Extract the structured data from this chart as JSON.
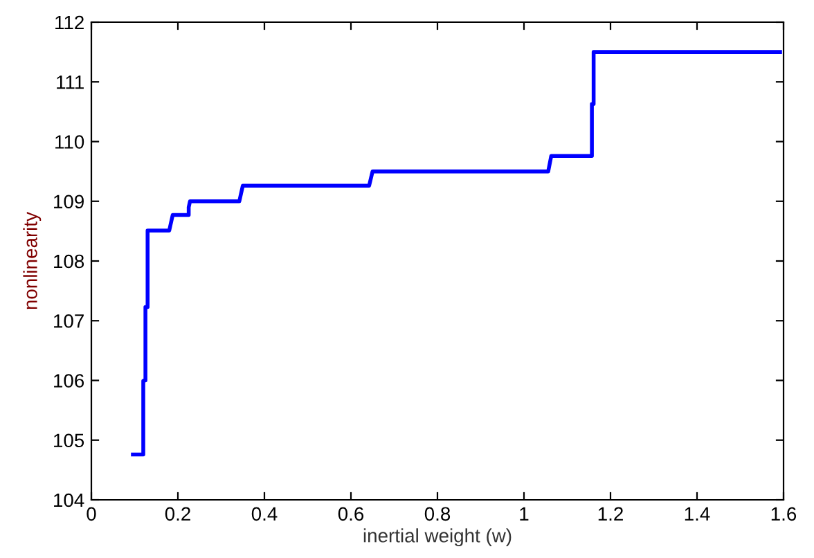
{
  "chart_data": {
    "type": "line",
    "xlabel": "inertial weight (w)",
    "ylabel": "nonlinearity",
    "x": [
      0.096,
      0.12,
      0.12,
      0.122,
      0.122,
      0.125,
      0.125,
      0.13,
      0.13,
      0.18,
      0.188,
      0.225,
      0.225,
      0.228,
      0.342,
      0.35,
      0.642,
      0.65,
      1.056,
      1.063,
      1.155,
      1.157,
      1.157,
      1.161,
      1.161,
      1.592
    ],
    "series": [
      {
        "color": "#0000ff",
        "values": [
          104.76,
          104.76,
          105.99,
          105.99,
          106.0,
          106.0,
          107.23,
          107.23,
          108.51,
          108.51,
          108.77,
          108.77,
          108.9,
          109.0,
          109.0,
          109.26,
          109.26,
          109.5,
          109.5,
          109.76,
          109.76,
          109.76,
          110.63,
          110.63,
          111.5,
          111.5
        ]
      }
    ],
    "xlim": [
      0,
      1.6
    ],
    "xticks": [
      0,
      0.2,
      0.4,
      0.6,
      0.8,
      1,
      1.2,
      1.4,
      1.6
    ],
    "ylim": [
      104,
      112
    ],
    "yticks": [
      104,
      105,
      106,
      107,
      108,
      109,
      110,
      111,
      112
    ],
    "grid": false,
    "legend": false,
    "marker": "none",
    "line_style": "solid"
  }
}
